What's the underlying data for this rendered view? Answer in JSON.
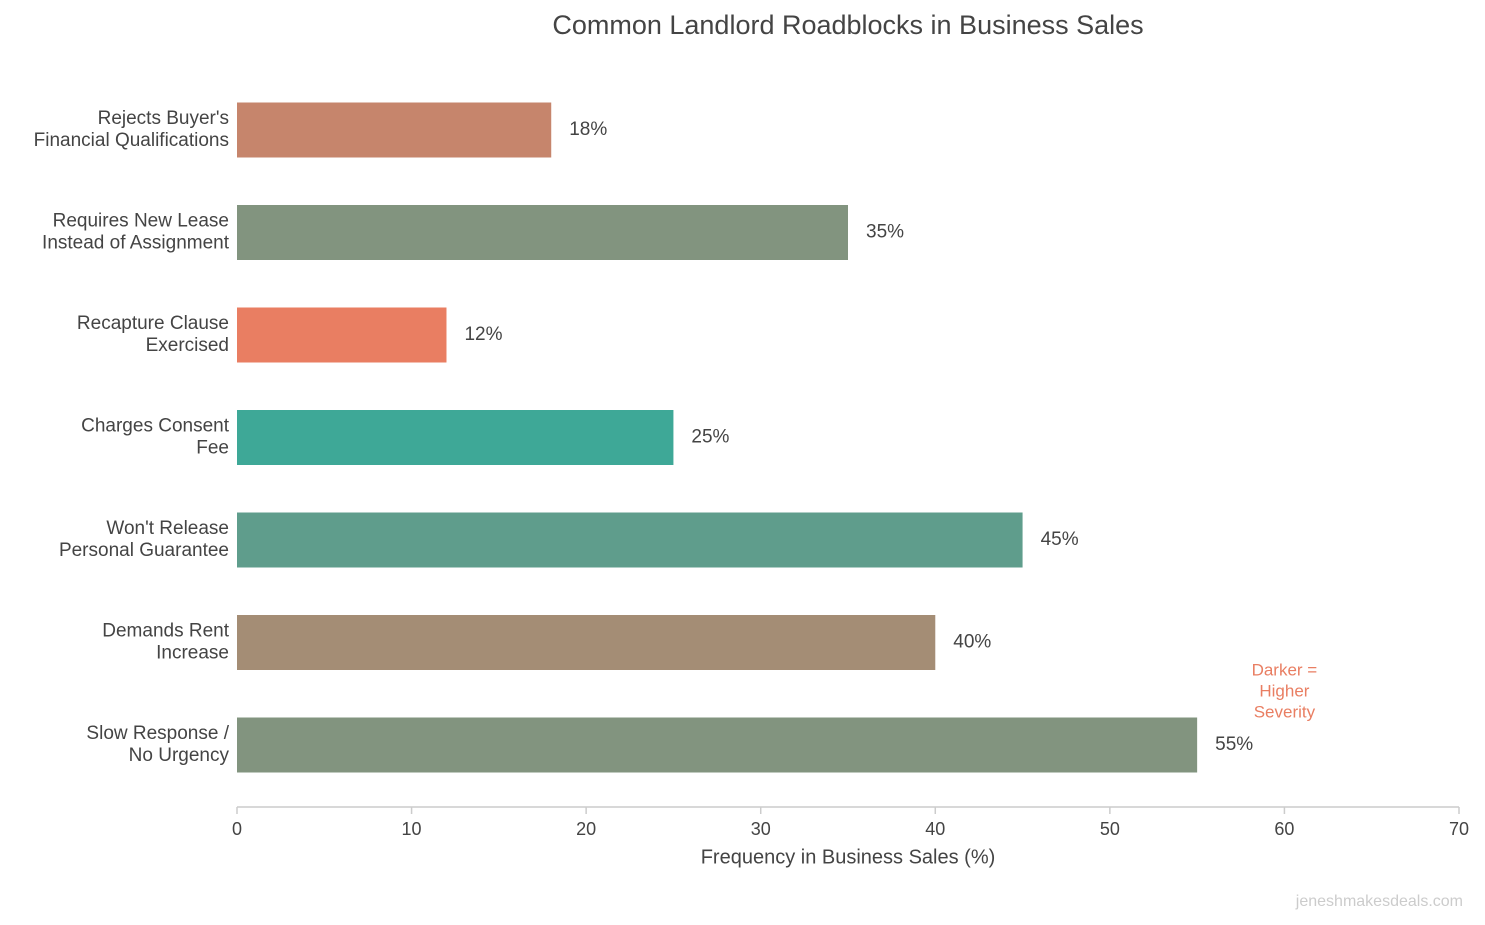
{
  "chart_data": {
    "type": "barh",
    "title": "Common Landlord Roadblocks in Business Sales",
    "x_label": "Frequency in Business Sales (%)",
    "categories": [
      [
        "Rejects Buyer's",
        "Financial Qualifications"
      ],
      [
        "Requires New Lease",
        "Instead of Assignment"
      ],
      [
        "Recapture Clause",
        "Exercised"
      ],
      [
        "Charges Consent",
        "Fee"
      ],
      [
        "Won't Release",
        "Personal Guarantee"
      ],
      [
        "Demands Rent",
        "Increase"
      ],
      [
        "Slow Response /",
        "No Urgency"
      ]
    ],
    "values": [
      18,
      35,
      12,
      25,
      45,
      40,
      55
    ],
    "value_labels": [
      "18%",
      "35%",
      "12%",
      "25%",
      "45%",
      "40%",
      "55%"
    ],
    "colors": [
      "#c6856c",
      "#82947f",
      "#e97e62",
      "#3ea897",
      "#5f9d8c",
      "#a48d75",
      "#82947f"
    ],
    "xlim": [
      0,
      70
    ],
    "xticks": [
      0,
      10,
      20,
      30,
      40,
      50,
      60,
      70
    ],
    "annotation": [
      "Darker =",
      "Higher",
      "Severity"
    ],
    "annotation_color": "#e97e62",
    "watermark": "jeneshmakesdeals.com"
  }
}
